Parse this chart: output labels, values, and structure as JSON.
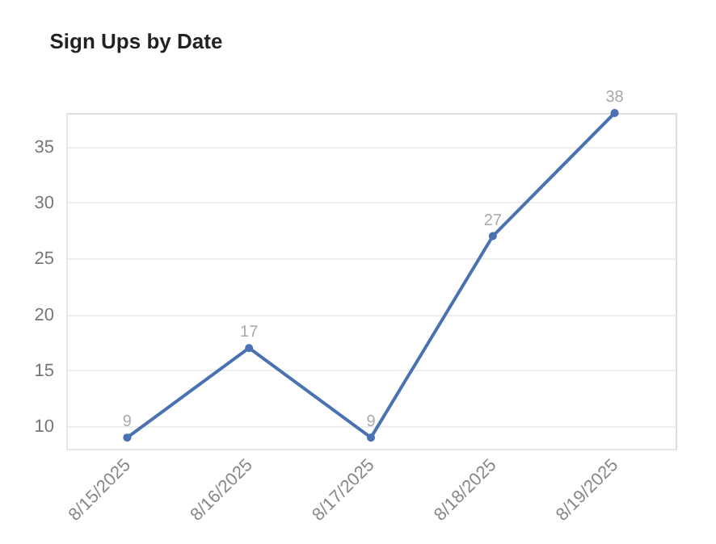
{
  "chart_data": {
    "type": "line",
    "title": "Sign Ups by Date",
    "categories": [
      "8/15/2025",
      "8/16/2025",
      "8/17/2025",
      "8/18/2025",
      "8/19/2025"
    ],
    "series": [
      {
        "color": "#4a72b0",
        "values": [
          9,
          17,
          9,
          27,
          38
        ]
      }
    ],
    "ylim": [
      8,
      38
    ],
    "yticks": [
      10,
      15,
      20,
      25,
      30,
      35
    ],
    "grid": "y",
    "marker": "circle",
    "line_style": "solid",
    "data_labels": true
  }
}
